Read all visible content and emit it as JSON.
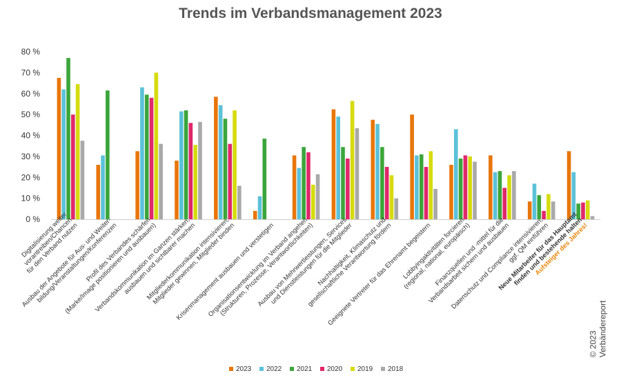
{
  "chart_data": {
    "type": "bar",
    "title": "Trends im Verbandsmanagement 2023",
    "ylim": [
      0,
      80
    ],
    "yticks": [
      "0 %",
      "10 %",
      "20 %",
      "30 %",
      "40 %",
      "50 %",
      "60 %",
      "70 %",
      "80 %"
    ],
    "grid": false,
    "legend_position": "bottom",
    "categories": [
      {
        "lines": [
          "Digitalisierung weiter",
          "vorantreiben/Chancen",
          "für den Verband nutzen"
        ]
      },
      {
        "lines": [
          "Ausbau der Angebote für Aus- und Weiter-",
          "bildung/Veranstaltungen/Konferenzen"
        ]
      },
      {
        "lines": [
          "Profil des Verbandes schärfen",
          "(Marke/Image positionieren und ausbauen)"
        ]
      },
      {
        "lines": [
          "Verbandskommunikation im Ganzen stärken,",
          "ausbauen und sichtbarer machen"
        ]
      },
      {
        "lines": [
          "Mitgliederkommunikation intensivieren,",
          "Mitglieder gewinnen, Mitglieder binden"
        ]
      },
      {
        "lines": [
          "Krisenmanagement ausbauen und verstetigen"
        ]
      },
      {
        "lines": [
          "Organisationsentwicklung im Verband angehen",
          "(Strukturen, Prozesse, Verantwortlichkeiten)"
        ]
      },
      {
        "lines": [
          "Ausbau von Mehrwertleistungen, Services",
          "und Dienstleistungen für die Mitglieder"
        ]
      },
      {
        "lines": [
          "Nachhaltigkeit, Klimaschutz und",
          "gesellschaftliche Verantwortung fördern"
        ]
      },
      {
        "lines": [
          "Geeignete Vertreter für das Ehrenamt begeistern"
        ]
      },
      {
        "lines": [
          "Lobbyingaktivitäten forcieren",
          "(regional, national, europäisch)"
        ]
      },
      {
        "lines": [
          "Finanzquellen und -mittel für die",
          "Verbandsarbeit sichern und ausbauen"
        ]
      },
      {
        "lines": [
          "Datenschutz und Compliance intensivieren,",
          "ggf. QM einführen"
        ]
      },
      {
        "lines": [
          "Neue Mitarbeiter für das Hauptamt",
          "finden und bestehende halten",
          "Aufsteiger des Jahres!"
        ],
        "bold": true,
        "accent_line": 2
      }
    ],
    "series": [
      {
        "name": "2023",
        "color": "#E8760B",
        "values": [
          67.5,
          26,
          32.5,
          28,
          58.5,
          4,
          30.5,
          52.5,
          47.5,
          50,
          26,
          30.5,
          8.5,
          32.5
        ]
      },
      {
        "name": "2022",
        "color": "#5BC1D9",
        "values": [
          62,
          30.5,
          63,
          51.5,
          54.5,
          11,
          24.5,
          49,
          45.5,
          30.5,
          43,
          22.5,
          17,
          22.5
        ]
      },
      {
        "name": "2021",
        "color": "#3BA53B",
        "values": [
          77,
          61.5,
          59.5,
          52,
          48,
          38.5,
          34.5,
          34.5,
          34.5,
          31,
          29,
          23,
          11.5,
          7.5
        ]
      },
      {
        "name": "2020",
        "color": "#E0286B",
        "values": [
          50,
          0,
          58,
          46,
          36,
          0,
          32,
          29,
          25,
          25,
          30.5,
          15,
          4,
          8
        ]
      },
      {
        "name": "2019",
        "color": "#D6DB0E",
        "values": [
          64.5,
          0,
          70,
          35.5,
          52,
          0,
          16.5,
          56.5,
          21,
          32.5,
          30,
          21,
          12,
          9
        ]
      },
      {
        "name": "2018",
        "color": "#A9A9A9",
        "values": [
          37.5,
          0,
          36,
          46.5,
          16,
          0,
          21.5,
          43.5,
          10,
          14.5,
          27.5,
          23,
          8.5,
          1.5
        ]
      }
    ]
  },
  "credit": "© 2023 Verbändereport"
}
